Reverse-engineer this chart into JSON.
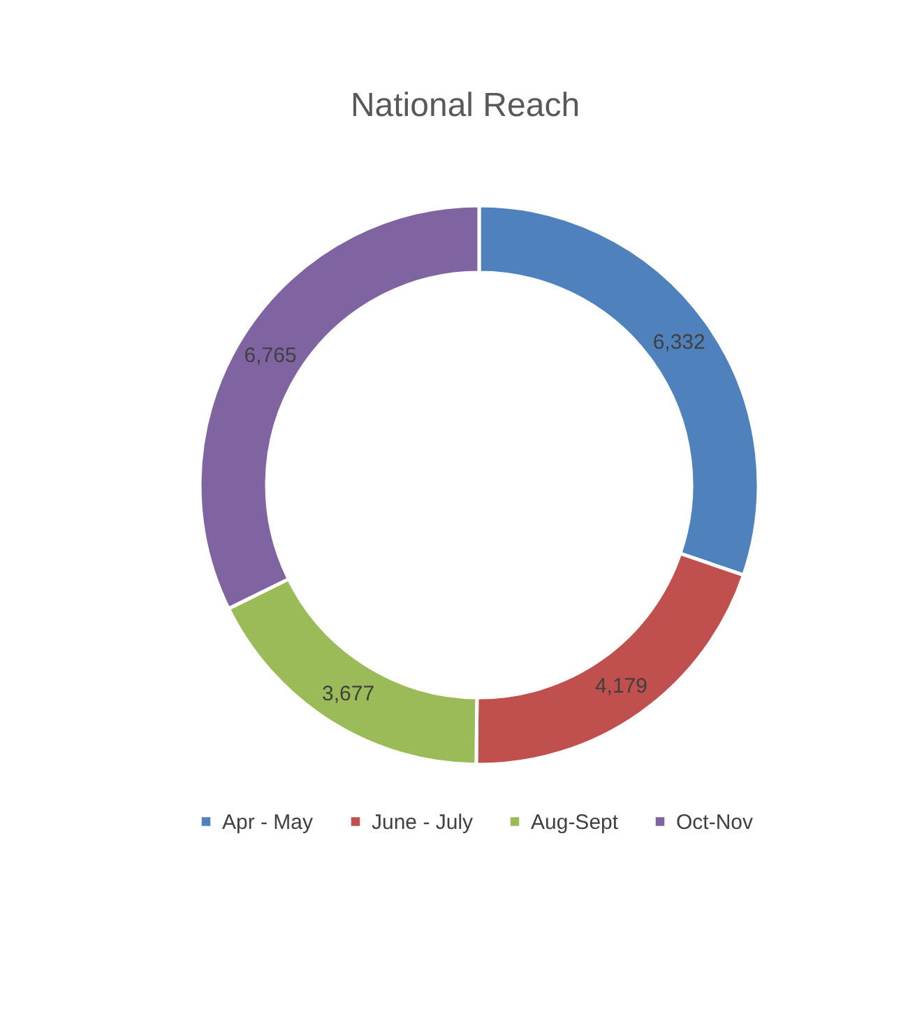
{
  "chart_data": {
    "type": "donut",
    "title": "National Reach",
    "categories": [
      "Apr - May",
      "June - July",
      "Aug-Sept",
      "Oct-Nov"
    ],
    "values": [
      6332,
      4179,
      3677,
      6765
    ],
    "colors": [
      "#4f81bd",
      "#c0504d",
      "#9bbb59",
      "#8064a2"
    ],
    "value_labels": [
      "6,332",
      "4,179",
      "3,677",
      "6,765"
    ],
    "legend": "bottom"
  }
}
